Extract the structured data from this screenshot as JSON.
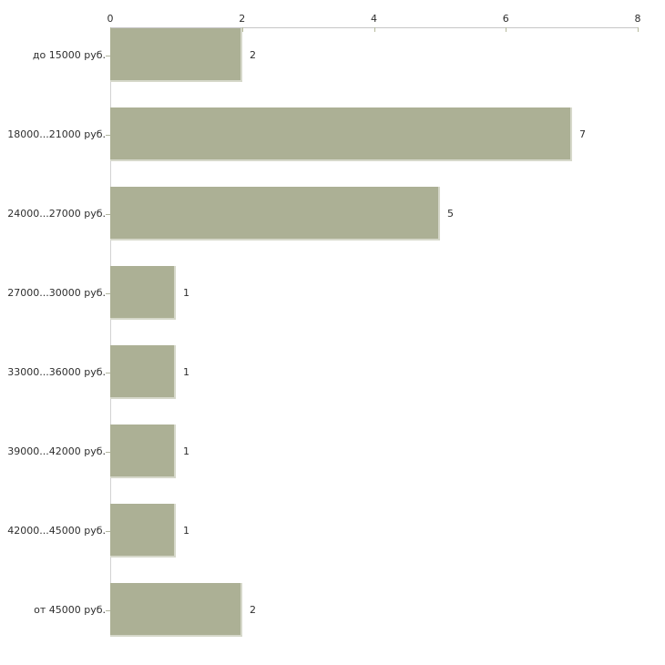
{
  "chart_data": {
    "type": "bar",
    "orientation": "horizontal",
    "title": "",
    "xlabel": "",
    "ylabel": "",
    "categories": [
      "до 15000 руб.",
      "18000...21000 руб.",
      "24000...27000 руб.",
      "27000...30000 руб.",
      "33000...36000 руб.",
      "39000...42000 руб.",
      "42000...45000 руб.",
      "от 45000 руб."
    ],
    "values": [
      2,
      7,
      5,
      1,
      1,
      1,
      1,
      2
    ],
    "value_labels": [
      "2",
      "7",
      "5",
      "1",
      "1",
      "1",
      "1",
      "2"
    ],
    "x_axis": {
      "position": "top",
      "min": 0,
      "max": 8,
      "ticks": [
        0,
        2,
        4,
        6,
        8
      ]
    },
    "grid": false,
    "legend": false,
    "colors": {
      "bar_fill": "#acb095",
      "axis_line": "#c6c6c6",
      "tick_mark": "#b6ba9c",
      "text": "#2e2e2e",
      "background": "#ffffff"
    }
  }
}
